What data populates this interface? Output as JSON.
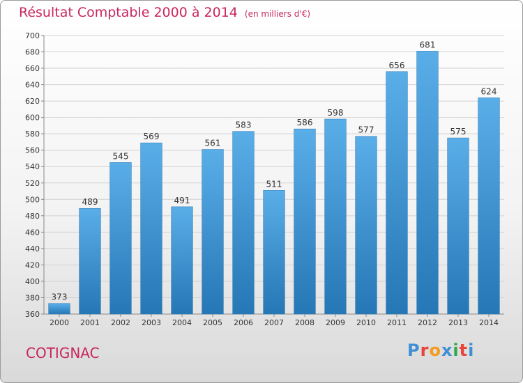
{
  "header": {
    "title": "Résultat Comptable 2000 à 2014",
    "subtitle": "(en milliers d'€)"
  },
  "footer": {
    "commune": "COTIGNAC",
    "logo_text": "Proxiti",
    "logo_colors": [
      "#3d8fd6",
      "#e8443c",
      "#f39c1f",
      "#3d8fd6",
      "#2ea84b",
      "#e8443c",
      "#3d8fd6"
    ]
  },
  "chart_data": {
    "type": "bar",
    "title": "Résultat Comptable 2000 à 2014",
    "subtitle": "(en milliers d'€)",
    "categories": [
      "2000",
      "2001",
      "2002",
      "2003",
      "2004",
      "2005",
      "2006",
      "2007",
      "2008",
      "2009",
      "2010",
      "2011",
      "2012",
      "2013",
      "2014"
    ],
    "values": [
      373,
      489,
      545,
      569,
      491,
      561,
      583,
      511,
      586,
      598,
      577,
      656,
      681,
      575,
      624
    ],
    "ylim": [
      360,
      700
    ],
    "yticks": [
      360,
      380,
      400,
      420,
      440,
      460,
      480,
      500,
      520,
      540,
      560,
      580,
      600,
      620,
      640,
      660,
      680,
      700
    ],
    "grid": true,
    "bar_color_top": "#5aaee8",
    "bar_color_bottom": "#2577b5"
  }
}
